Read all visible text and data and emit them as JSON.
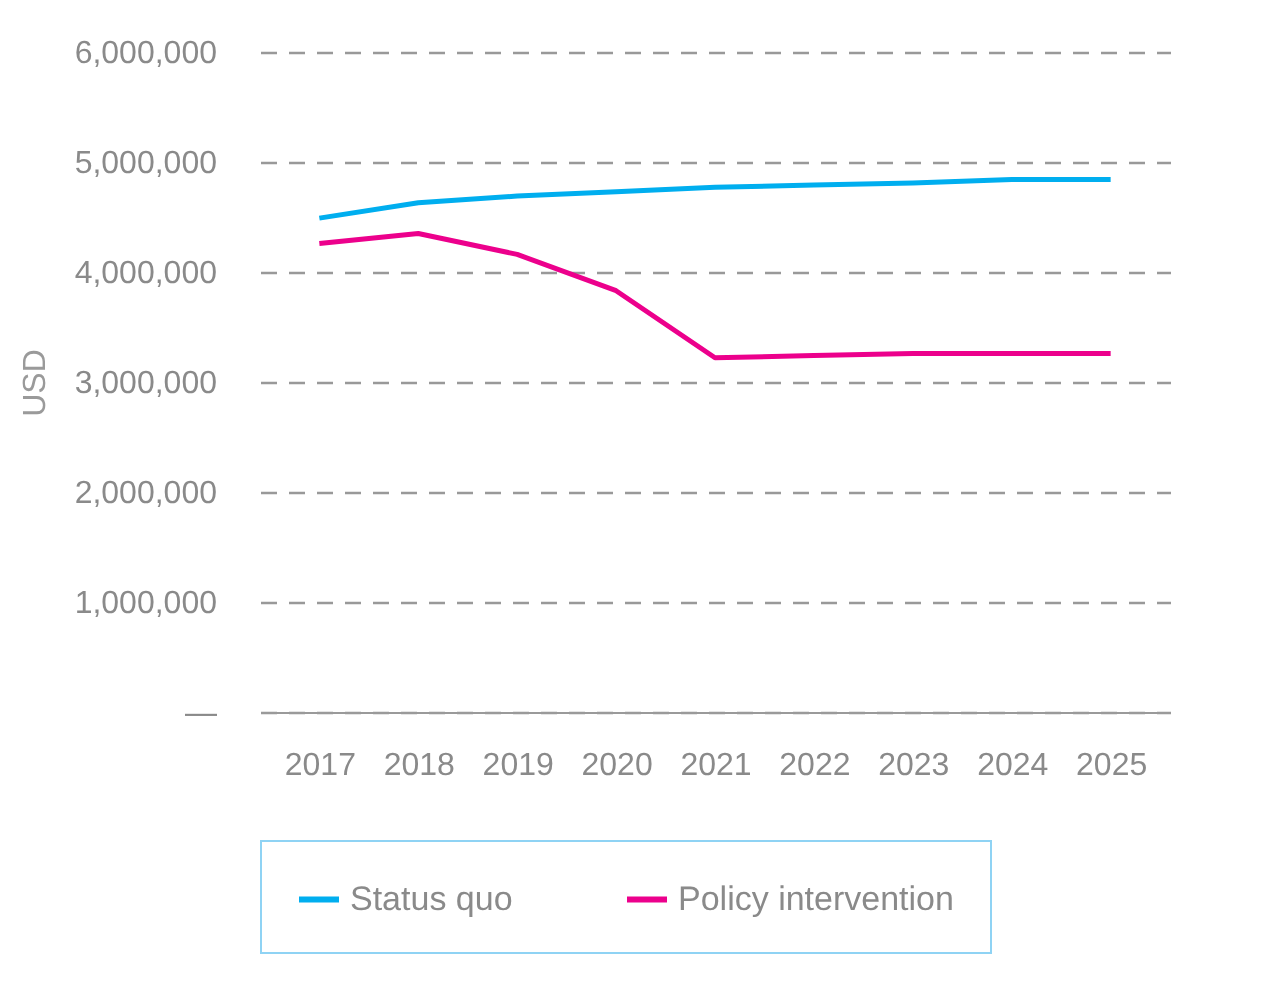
{
  "chart_data": {
    "type": "line",
    "ylabel": "USD",
    "categories": [
      "2017",
      "2018",
      "2019",
      "2020",
      "2021",
      "2022",
      "2023",
      "2024",
      "2025"
    ],
    "series": [
      {
        "name": "Status quo",
        "color": "#00aeef",
        "values": [
          4490000,
          4630000,
          4690000,
          4730000,
          4770000,
          4790000,
          4810000,
          4840000,
          4840000
        ]
      },
      {
        "name": "Policy intervention",
        "color": "#ec008c",
        "values": [
          4260000,
          4350000,
          4160000,
          3830000,
          3220000,
          3240000,
          3260000,
          3260000,
          3260000
        ]
      }
    ],
    "ylim": [
      0,
      6000000
    ],
    "yticks": [
      {
        "value": 0,
        "label": "—"
      },
      {
        "value": 1000000,
        "label": "1,000,000"
      },
      {
        "value": 2000000,
        "label": "2,000,000"
      },
      {
        "value": 3000000,
        "label": "3,000,000"
      },
      {
        "value": 4000000,
        "label": "4,000,000"
      },
      {
        "value": 5000000,
        "label": "5,000,000"
      },
      {
        "value": 6000000,
        "label": "6,000,000"
      }
    ],
    "grid": "y",
    "legend": "bottom",
    "marker": "none",
    "line_style": "solid"
  }
}
